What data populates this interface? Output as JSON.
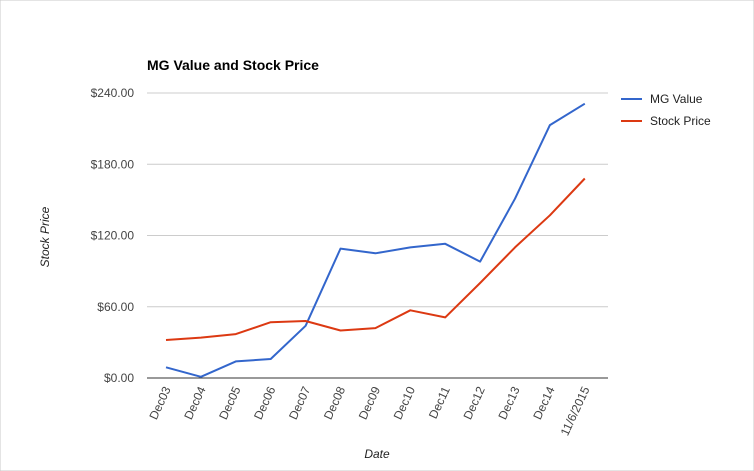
{
  "chart_data": {
    "type": "line",
    "title": "MG Value and Stock Price",
    "xlabel": "Date",
    "ylabel": "Stock Price",
    "categories": [
      "Dec03",
      "Dec04",
      "Dec05",
      "Dec06",
      "Dec07",
      "Dec08",
      "Dec09",
      "Dec10",
      "Dec11",
      "Dec12",
      "Dec13",
      "Dec14",
      "11/6/2015"
    ],
    "yticks": [
      "$0.00",
      "$60.00",
      "$120.00",
      "$180.00",
      "$240.00"
    ],
    "ylim": [
      0,
      240
    ],
    "grid": true,
    "legend_position": "right",
    "series": [
      {
        "name": "MG Value",
        "color": "#3366cc",
        "values": [
          9,
          1,
          14,
          16,
          44,
          109,
          105,
          110,
          113,
          98,
          151,
          213,
          231
        ]
      },
      {
        "name": "Stock Price",
        "color": "#dc3912",
        "values": [
          32,
          34,
          37,
          47,
          48,
          40,
          42,
          57,
          51,
          80,
          110,
          137,
          168
        ]
      }
    ]
  }
}
